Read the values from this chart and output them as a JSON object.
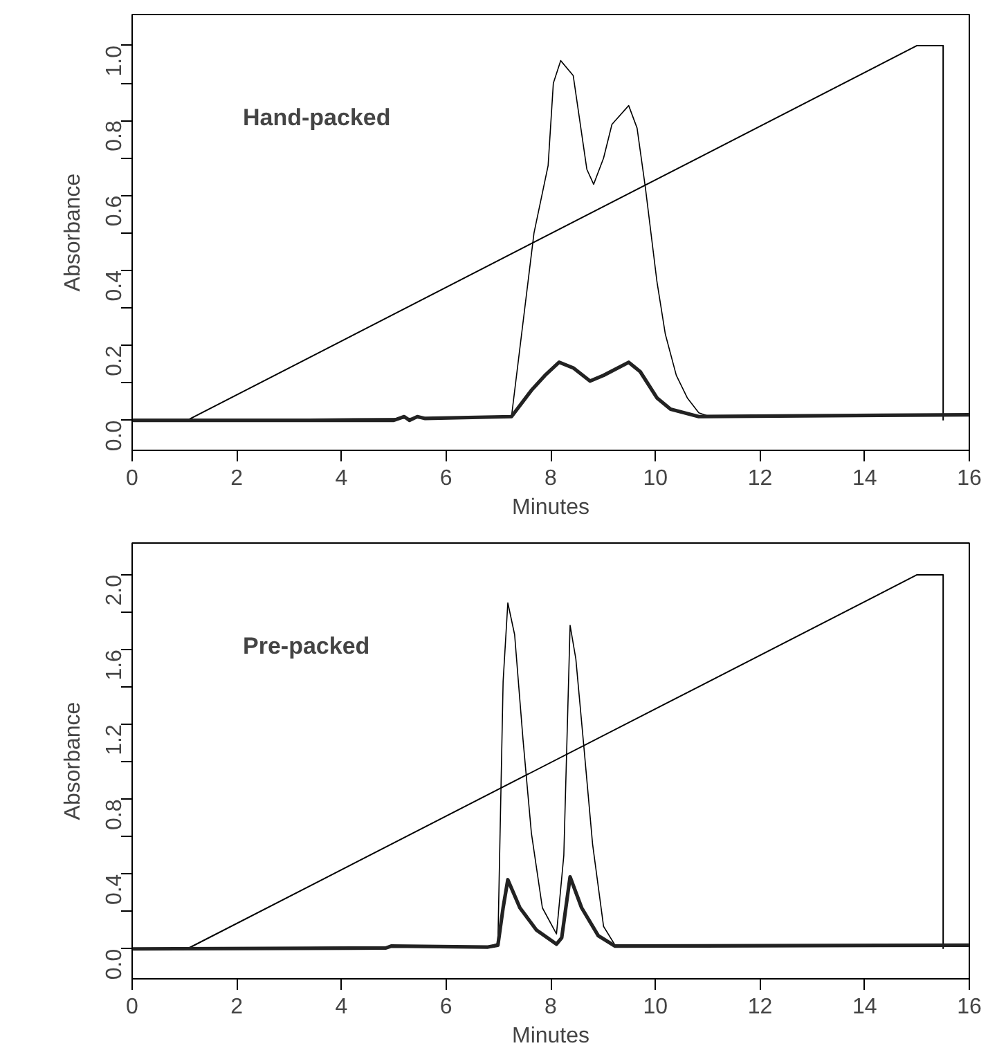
{
  "chart_data": [
    {
      "type": "line",
      "xlabel": "Minutes",
      "ylabel": "Absorbance",
      "annotations": [
        "Hand-packed"
      ],
      "xlim": [
        0,
        16
      ],
      "ylim": [
        -0.08,
        1.083
      ],
      "xticks": [
        0,
        2,
        4,
        6,
        8,
        10,
        12,
        14,
        16
      ],
      "yticks": [
        {
          "value": 0,
          "label": "0.0"
        },
        {
          "value": 0.1,
          "label": null
        },
        {
          "value": 0.2,
          "label": "0.2"
        },
        {
          "value": 0.3,
          "label": null
        },
        {
          "value": 0.4,
          "label": "0.4"
        },
        {
          "value": 0.5,
          "label": null
        },
        {
          "value": 0.6,
          "label": "0.6"
        },
        {
          "value": 0.7,
          "label": null
        },
        {
          "value": 0.8,
          "label": "0.8"
        },
        {
          "value": 0.9,
          "label": null
        },
        {
          "value": 1.0,
          "label": "1.0"
        }
      ],
      "series": [
        {
          "color": "#000000",
          "x": [
            0,
            1.05,
            15.0,
            15.5,
            15.5
          ],
          "values": [
            0,
            0,
            1.0,
            1.0,
            0
          ]
        },
        {
          "color": "#000000",
          "x": [
            0,
            5.0,
            7.25,
            7.68,
            7.95,
            8.05,
            8.19,
            8.43,
            8.69,
            8.82,
            9.01,
            9.17,
            9.49,
            9.65,
            9.81,
            10.03,
            10.19,
            10.4,
            10.61,
            10.83,
            11.04,
            16
          ],
          "values": [
            0,
            0.005,
            0.01,
            0.5,
            0.68,
            0.9,
            0.96,
            0.92,
            0.67,
            0.63,
            0.7,
            0.79,
            0.84,
            0.78,
            0.62,
            0.37,
            0.23,
            0.12,
            0.06,
            0.02,
            0.01,
            0.015
          ]
        },
        {
          "color": "#222222",
          "x": [
            0,
            5.0,
            5.2,
            5.3,
            5.45,
            5.6,
            7.25,
            7.63,
            7.89,
            8.16,
            8.43,
            8.75,
            9.01,
            9.49,
            9.71,
            10.03,
            10.29,
            10.83,
            16
          ],
          "values": [
            0,
            0,
            0.01,
            0,
            0.01,
            0.005,
            0.01,
            0.08,
            0.12,
            0.155,
            0.14,
            0.105,
            0.12,
            0.155,
            0.13,
            0.06,
            0.03,
            0.01,
            0.015
          ]
        }
      ]
    },
    {
      "type": "line",
      "xlabel": "Minutes",
      "ylabel": "Absorbance",
      "annotations": [
        "Pre-packed"
      ],
      "xlim": [
        0,
        16
      ],
      "ylim": [
        -0.16,
        2.17
      ],
      "xticks": [
        0,
        2,
        4,
        6,
        8,
        10,
        12,
        14,
        16
      ],
      "yticks": [
        {
          "value": 0,
          "label": "0.0"
        },
        {
          "value": 0.2,
          "label": null
        },
        {
          "value": 0.4,
          "label": "0.4"
        },
        {
          "value": 0.6,
          "label": null
        },
        {
          "value": 0.8,
          "label": "0.8"
        },
        {
          "value": 1.0,
          "label": null
        },
        {
          "value": 1.2,
          "label": "1.2"
        },
        {
          "value": 1.4,
          "label": null
        },
        {
          "value": 1.6,
          "label": "1.6"
        },
        {
          "value": 1.8,
          "label": null
        },
        {
          "value": 2.0,
          "label": "2.0"
        }
      ],
      "series": [
        {
          "color": "#000000",
          "x": [
            0,
            1.05,
            15.0,
            15.5,
            15.5
          ],
          "values": [
            0,
            0,
            2.0,
            2.0,
            0
          ]
        },
        {
          "color": "#000000",
          "x": [
            0,
            4.9,
            6.8,
            6.99,
            7.09,
            7.18,
            7.31,
            7.47,
            7.63,
            7.84,
            8.11,
            8.25,
            8.37,
            8.48,
            8.64,
            8.8,
            9.01,
            9.23,
            16
          ],
          "values": [
            0,
            0.01,
            0.01,
            0.03,
            1.43,
            1.85,
            1.68,
            1.12,
            0.62,
            0.22,
            0.08,
            0.5,
            1.73,
            1.55,
            1.06,
            0.56,
            0.12,
            0.02,
            0.02
          ]
        },
        {
          "color": "#222222",
          "x": [
            0,
            4.85,
            4.95,
            6.8,
            6.99,
            7.09,
            7.18,
            7.41,
            7.73,
            8.11,
            8.21,
            8.37,
            8.59,
            8.91,
            9.23,
            16
          ],
          "values": [
            0,
            0.005,
            0.015,
            0.01,
            0.02,
            0.22,
            0.37,
            0.22,
            0.1,
            0.025,
            0.06,
            0.385,
            0.22,
            0.07,
            0.015,
            0.02
          ]
        }
      ]
    }
  ]
}
